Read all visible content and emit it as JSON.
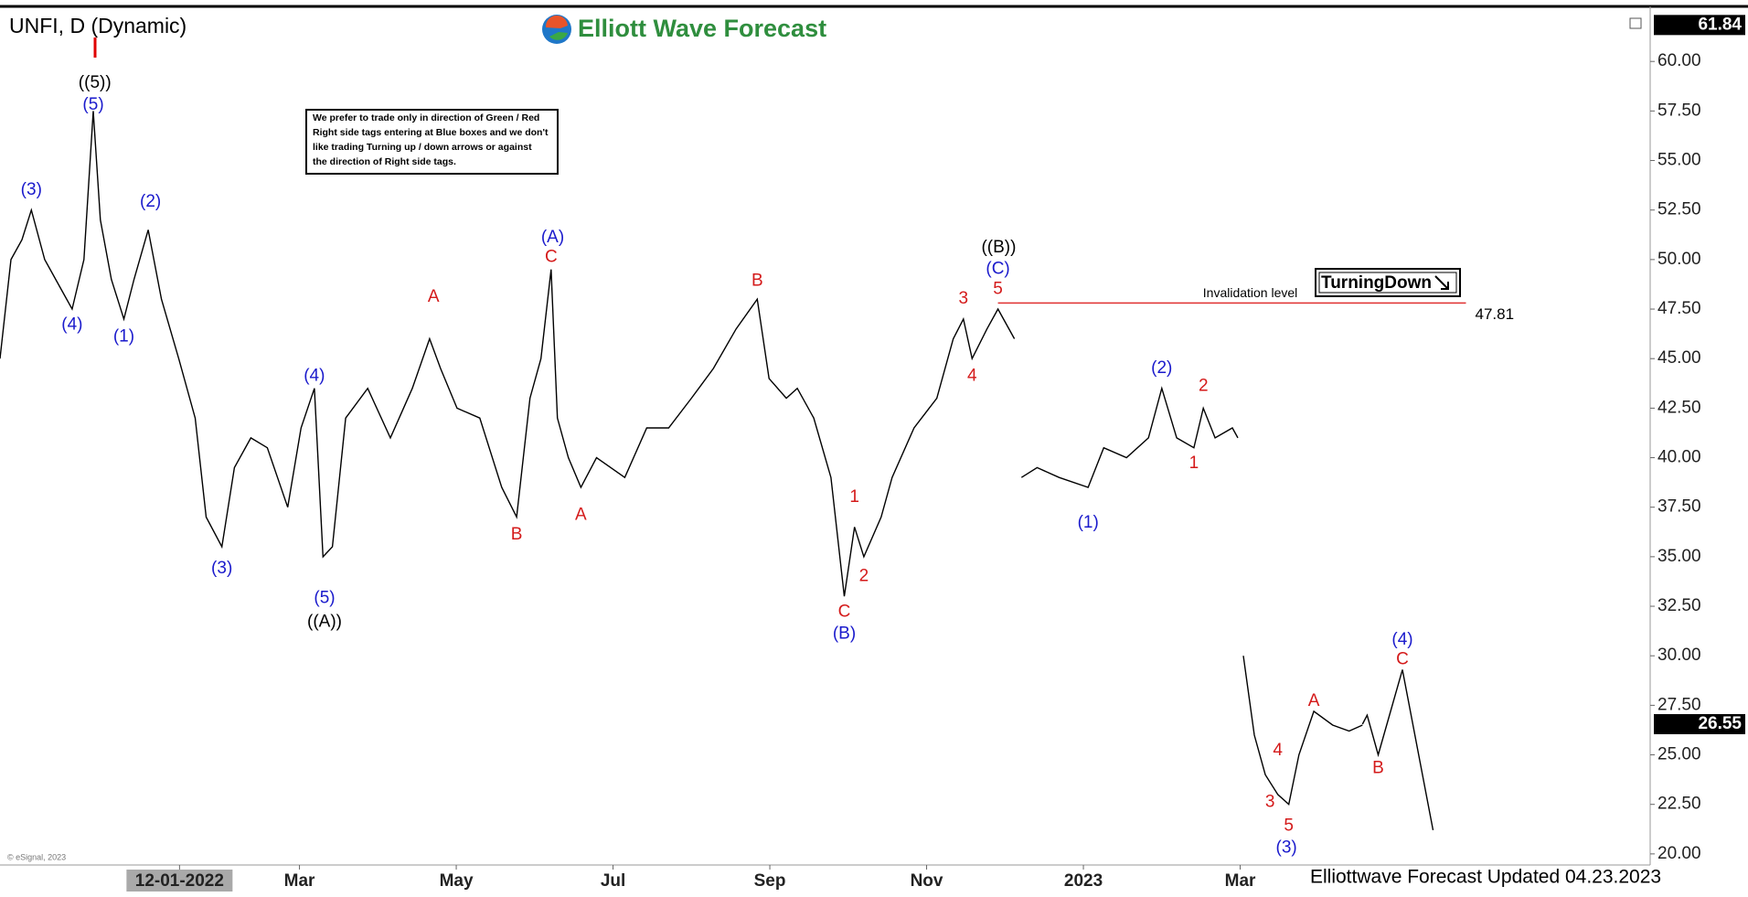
{
  "chart_data": {
    "type": "line",
    "title": "UNFI, D (Dynamic)",
    "brand": "Elliott Wave Forecast",
    "footer": "Elliottwave Forecast Updated 04.23.2023",
    "copyright": "© eSignal, 2023",
    "note": [
      "We prefer to trade only in direction of Green / Red",
      "Right side tags entering at Blue boxes and we don't",
      "like trading Turning up / down arrows or against",
      "the direction of Right side tags."
    ],
    "tag": "TurningDown",
    "xlim": [
      -1.82,
      19.23
    ],
    "ylim": [
      19.44,
      62.64
    ],
    "xticks": [
      {
        "value": 0.47,
        "label": "12-01-2022"
      },
      {
        "value": 2,
        "label": "Mar"
      },
      {
        "value": 4,
        "label": "May"
      },
      {
        "value": 6,
        "label": "Jul"
      },
      {
        "value": 8,
        "label": "Sep"
      },
      {
        "value": 10,
        "label": "Nov"
      },
      {
        "value": 12,
        "label": "2023"
      },
      {
        "value": 14,
        "label": "Mar"
      }
    ],
    "yticks": [
      {
        "value": 20,
        "label": "20.00"
      },
      {
        "value": 22.5,
        "label": "22.50"
      },
      {
        "value": 25,
        "label": "25.00"
      },
      {
        "value": 27.5,
        "label": "27.50"
      },
      {
        "value": 30,
        "label": "30.00"
      },
      {
        "value": 32.5,
        "label": "32.50"
      },
      {
        "value": 35,
        "label": "35.00"
      },
      {
        "value": 37.5,
        "label": "37.50"
      },
      {
        "value": 40,
        "label": "40.00"
      },
      {
        "value": 42.5,
        "label": "42.50"
      },
      {
        "value": 45,
        "label": "45.00"
      },
      {
        "value": 47.5,
        "label": "47.50"
      },
      {
        "value": 50,
        "label": "50.00"
      },
      {
        "value": 52.5,
        "label": "52.50"
      },
      {
        "value": 55,
        "label": "55.00"
      },
      {
        "value": 57.5,
        "label": "57.50"
      },
      {
        "value": 60,
        "label": "60.00"
      }
    ],
    "series": [
      {
        "color": "#000000",
        "x": [
          -1.82,
          -1.68,
          -1.54,
          -1.42,
          -1.25,
          -1.04,
          -0.9,
          -0.75,
          -0.63,
          -0.54,
          -0.4,
          -0.24,
          -0.11,
          0.07,
          0.24,
          0.46,
          0.67,
          0.81,
          1.01,
          1.17,
          1.38,
          1.59,
          1.85,
          2.02,
          2.19,
          2.3,
          2.42,
          2.59,
          2.87,
          3.16,
          3.44,
          3.66,
          3.8,
          4.01,
          4.3,
          4.58,
          4.77,
          4.94,
          5.08,
          5.21,
          5.29,
          5.43,
          5.59,
          5.79,
          6.15,
          6.43,
          6.71,
          7.0,
          7.28,
          7.57,
          7.84,
          7.99,
          8.21,
          8.35,
          8.56,
          8.78,
          8.95,
          9.08,
          9.2,
          9.42,
          9.56,
          9.84,
          10.13,
          10.34,
          10.47,
          10.58,
          10.77,
          10.91,
          11.12,
          null,
          11.21,
          11.41,
          11.69,
          12.06,
          12.26,
          12.55,
          12.83,
          13.0,
          13.19,
          13.41,
          13.53,
          13.68,
          13.9,
          13.97,
          null,
          14.04,
          14.18,
          14.32,
          14.48,
          14.62,
          14.75,
          14.94,
          15.18,
          15.39,
          15.56
        ],
        "values": [
          45,
          50,
          51,
          52.5,
          50,
          48.5,
          47.5,
          50,
          57.5,
          52,
          49,
          47,
          49,
          51.5,
          48,
          45,
          42,
          37,
          35.5,
          39.5,
          41,
          40.5,
          37.5,
          41.5,
          43.5,
          35,
          35.5,
          42,
          43.5,
          41,
          43.5,
          46,
          44.5,
          42.5,
          42,
          38.5,
          37,
          43,
          45,
          49.5,
          42,
          40,
          38.5,
          40,
          39,
          41.5,
          41.5,
          43,
          44.5,
          46.5,
          48,
          44,
          43,
          43.5,
          42,
          39,
          33,
          36.5,
          35,
          37,
          39,
          41.5,
          43,
          46,
          47,
          45,
          46.5,
          47.5,
          46,
          null,
          39,
          39.5,
          39,
          38.5,
          40.5,
          40,
          41,
          43.5,
          41,
          40.5,
          42.5,
          41,
          41.5,
          41,
          null,
          30,
          26,
          24,
          23,
          22.5,
          25,
          27.2,
          26.5,
          26.2,
          26.5
        ]
      },
      {
        "color": "#000000",
        "x": [
          15.56,
          15.62,
          15.76,
          16.07,
          16.46
        ],
        "values": [
          26.55,
          27,
          25,
          29.3,
          21.2
        ]
      }
    ],
    "last_price": 26.55,
    "high_price": 61.84,
    "invalidation": {
      "label": "Invalidation level",
      "value": 47.81,
      "x": [
        10.91,
        16.88
      ],
      "color": "#e03030"
    },
    "annotations": [
      {
        "text": "((5))",
        "color": "#000000",
        "x": -0.61,
        "y": 58.9
      },
      {
        "text": "(5)",
        "color": "#1a1acc",
        "x": -0.63,
        "y": 57.8
      },
      {
        "text": "(3)",
        "color": "#1a1acc",
        "x": -1.42,
        "y": 53.5
      },
      {
        "text": "(4)",
        "color": "#1a1acc",
        "x": -0.9,
        "y": 46.7
      },
      {
        "text": "(2)",
        "color": "#1a1acc",
        "x": 0.1,
        "y": 52.9
      },
      {
        "text": "(1)",
        "color": "#1a1acc",
        "x": -0.24,
        "y": 46.1
      },
      {
        "text": "(3)",
        "color": "#1a1acc",
        "x": 1.01,
        "y": 34.4
      },
      {
        "text": "(4)",
        "color": "#1a1acc",
        "x": 2.19,
        "y": 44.1
      },
      {
        "text": "(5)",
        "color": "#1a1acc",
        "x": 2.32,
        "y": 32.9
      },
      {
        "text": "((A))",
        "color": "#000000",
        "x": 2.32,
        "y": 31.7
      },
      {
        "text": "A",
        "color": "#d41a1a",
        "x": 3.71,
        "y": 48.1
      },
      {
        "text": "B",
        "color": "#d41a1a",
        "x": 4.77,
        "y": 36.1
      },
      {
        "text": "(A)",
        "color": "#1a1acc",
        "x": 5.23,
        "y": 51.1
      },
      {
        "text": "C",
        "color": "#d41a1a",
        "x": 5.21,
        "y": 50.1
      },
      {
        "text": "A",
        "color": "#d41a1a",
        "x": 5.59,
        "y": 37.1
      },
      {
        "text": "B",
        "color": "#d41a1a",
        "x": 7.84,
        "y": 48.9
      },
      {
        "text": "1",
        "color": "#d41a1a",
        "x": 9.08,
        "y": 38.0
      },
      {
        "text": "2",
        "color": "#d41a1a",
        "x": 9.2,
        "y": 34.0
      },
      {
        "text": "C",
        "color": "#d41a1a",
        "x": 8.95,
        "y": 32.2
      },
      {
        "text": "(B)",
        "color": "#1a1acc",
        "x": 8.95,
        "y": 31.1
      },
      {
        "text": "3",
        "color": "#d41a1a",
        "x": 10.47,
        "y": 48.0
      },
      {
        "text": "4",
        "color": "#d41a1a",
        "x": 10.58,
        "y": 44.1
      },
      {
        "text": "5",
        "color": "#d41a1a",
        "x": 10.91,
        "y": 48.5
      },
      {
        "text": "(C)",
        "color": "#1a1acc",
        "x": 10.91,
        "y": 49.5
      },
      {
        "text": "((B))",
        "color": "#000000",
        "x": 10.92,
        "y": 50.6
      },
      {
        "text": "(1)",
        "color": "#1a1acc",
        "x": 12.06,
        "y": 36.7
      },
      {
        "text": "(2)",
        "color": "#1a1acc",
        "x": 13.0,
        "y": 44.5
      },
      {
        "text": "2",
        "color": "#d41a1a",
        "x": 13.53,
        "y": 43.6
      },
      {
        "text": "1",
        "color": "#d41a1a",
        "x": 13.41,
        "y": 39.7
      },
      {
        "text": "A",
        "color": "#d41a1a",
        "x": 14.94,
        "y": 27.7
      },
      {
        "text": "4",
        "color": "#d41a1a",
        "x": 14.48,
        "y": 25.2
      },
      {
        "text": "3",
        "color": "#d41a1a",
        "x": 14.38,
        "y": 22.6
      },
      {
        "text": "5",
        "color": "#d41a1a",
        "x": 14.62,
        "y": 21.4
      },
      {
        "text": "(3)",
        "color": "#1a1acc",
        "x": 14.59,
        "y": 20.3
      },
      {
        "text": "B",
        "color": "#d41a1a",
        "x": 15.76,
        "y": 24.3
      },
      {
        "text": "C",
        "color": "#d41a1a",
        "x": 16.07,
        "y": 29.8
      },
      {
        "text": "(4)",
        "color": "#1a1acc",
        "x": 16.07,
        "y": 30.8
      }
    ]
  }
}
